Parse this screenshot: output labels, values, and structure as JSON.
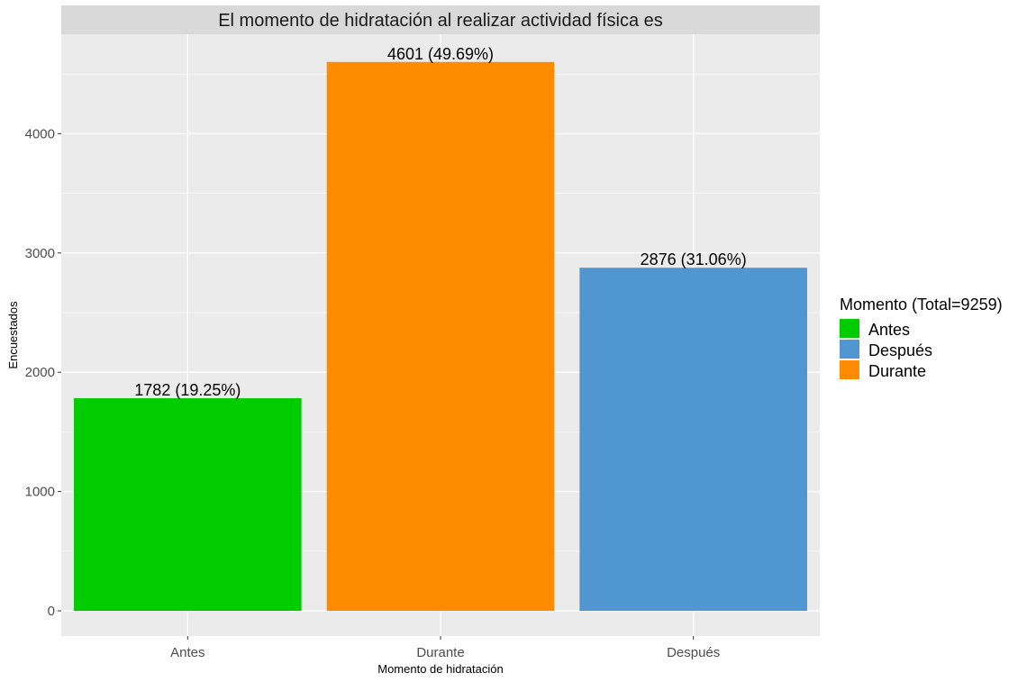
{
  "chart_data": {
    "type": "bar",
    "title": "El momento de hidratación al realizar actividad física es",
    "xlabel": "Momento de hidratación",
    "ylabel": "Encuestados",
    "categories": [
      "Antes",
      "Durante",
      "Después"
    ],
    "values": [
      1782,
      4601,
      2876
    ],
    "data_labels": [
      "1782 (19.25%)",
      "4601 (49.69%)",
      "2876 (31.06%)"
    ],
    "colors": [
      "#00CC00",
      "#FF8C00",
      "#5096D0"
    ],
    "ylim": [
      0,
      4830
    ],
    "yticks": [
      0,
      1000,
      2000,
      3000,
      4000
    ],
    "ytick_labels": [
      "0",
      "1000",
      "2000",
      "3000",
      "4000"
    ],
    "grid": true,
    "legend": {
      "title": "Momento (Total=9259)",
      "placement": "right",
      "items": [
        {
          "label": "Antes",
          "color": "#00CC00"
        },
        {
          "label": "Después",
          "color": "#5096D0"
        },
        {
          "label": "Durante",
          "color": "#FF8C00"
        }
      ]
    },
    "theme": {
      "panel_bg": "#EBEBEB",
      "strip_bg": "#D9D9D9",
      "grid_color": "#FFFFFF"
    }
  }
}
